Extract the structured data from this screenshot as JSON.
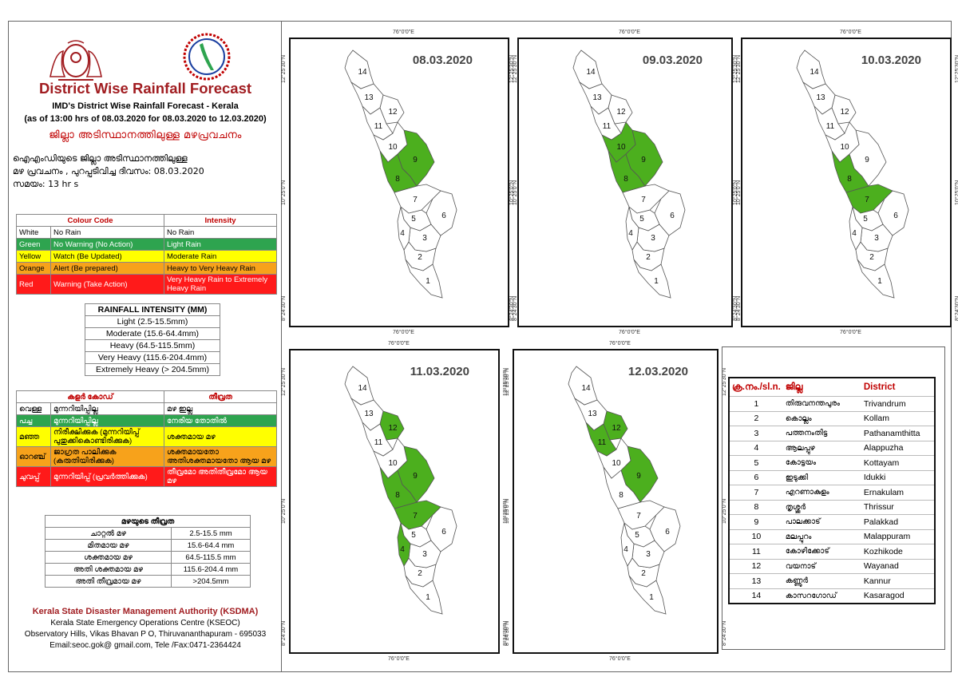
{
  "header": {
    "title": "District Wise Rainfall Forecast",
    "subtitle1": "IMD's District Wise Rainfall Forecast - Kerala",
    "subtitle2": "(as of 13:00 hrs of 08.03.2020  for 08.03.2020  to 12.03.2020)",
    "mal_title": "ജില്ലാ അടിസ്ഥാനത്തിലുള്ള മഴപ്രവചനം",
    "mal_line1": "ഐഎംഡിയുടെ ജില്ലാ    അടിസ്ഥാനത്തിലുള്ള",
    "mal_line2": "മഴ പ്രവചനം , പുറപ്പടിവിച്ച    ദിവസം: 08.03.2020",
    "mal_line3": "സമയം: 13  hr s"
  },
  "colour_table": {
    "headers": [
      "Colour Code",
      "Intensity"
    ],
    "rows": [
      {
        "colour": "White",
        "code": "No Rain",
        "intensity": "No Rain",
        "cls": "c-white"
      },
      {
        "colour": "Green",
        "code": "No Warning (No Action)",
        "intensity": "Light Rain",
        "cls": "c-green"
      },
      {
        "colour": "Yellow",
        "code": "Watch (Be Updated)",
        "intensity": "Moderate Rain",
        "cls": "c-yellow"
      },
      {
        "colour": "Orange",
        "code": "Alert (Be prepared)",
        "intensity": "Heavy to Very Heavy Rain",
        "cls": "c-orange"
      },
      {
        "colour": "Red",
        "code": "Warning (Take Action)",
        "intensity": "Very Heavy Rain to Extremely Heavy Rain",
        "cls": "c-red"
      }
    ]
  },
  "rainfall_intensity": {
    "header": "RAINFALL INTENSITY (MM)",
    "rows": [
      "Light (2.5-15.5mm)",
      "Moderate (15.6-64.4mm)",
      "Heavy (64.5-115.5mm)",
      "Very Heavy (115.6-204.4mm)",
      "Extremely Heavy (> 204.5mm)"
    ]
  },
  "mal_colour_table": {
    "headers": [
      "കളർ കോഡ്",
      "തീവ്രത"
    ],
    "rows": [
      {
        "colour": "വെള്ള",
        "code": "മുന്നറിയിപ്പില്ല",
        "intensity": "മഴ ഇല്ല",
        "cls": "c-white"
      },
      {
        "colour": "പച്ച",
        "code": "മുന്നറിയിപ്പില്ല",
        "intensity": "നേരിയ തോതിൽ",
        "cls": "c-green"
      },
      {
        "colour": "മഞ്ഞ",
        "code": "നിരീക്ഷിക്കുക (മുന്നറിയിപ്പ് പുതുക്കികൊണ്ടിരിക്കുക)",
        "intensity": "ശക്തമായ മഴ",
        "cls": "c-yellow"
      },
      {
        "colour": "ഓറഞ്ച്",
        "code": "ജാഗ്രത പാലിക്കുക (കരുതിയിരിക്കുക)",
        "intensity": "ശക്തമായതോ അതിശക്തമായതോ ആയ മഴ",
        "cls": "c-orange"
      },
      {
        "colour": "ചുവപ്പ്",
        "code": "മുന്നറിയിപ്പ് (പ്രവർത്തിക്കുക)",
        "intensity": "തീവ്രമോ അതിതീവ്രമോ ആയ മഴ",
        "cls": "c-red"
      }
    ]
  },
  "mal_intensity": {
    "header": "മഴയുടെ തീവ്രത",
    "rows": [
      {
        "label": "ചാറ്റൽ മഴ",
        "value": "2.5-15.5 mm"
      },
      {
        "label": "മിതമായ മഴ",
        "value": "15.6-64.4 mm"
      },
      {
        "label": "ശക്തമായ മഴ",
        "value": "64.5-115.5 mm"
      },
      {
        "label": "അതി ശക്തമായ മഴ",
        "value": "115.6-204.4 mm"
      },
      {
        "label": "അതി തീവ്രമായ മഴ",
        "value": ">204.5mm"
      }
    ]
  },
  "footer": {
    "org": "Kerala State Disaster Management Authority (KSDMA)",
    "line1": "Kerala State Emergency Operations Centre (KSEOC)",
    "line2": "Observatory Hills, Vikas Bhavan P O, Thiruvananthapuram - 695033",
    "line3": "Email:seoc.gok@ gmail.com, Tele /Fax:0471-2364424"
  },
  "colors": {
    "green": "#4caf1e",
    "white": "#ffffff",
    "border": "#555555"
  },
  "coords": {
    "lon": "76°0'0\"E",
    "lat_top": "12°25'30\"N",
    "lat_mid": "10°25'0\"N",
    "lat_bot": "8°24'30\"N"
  },
  "maps": [
    {
      "date": "08.03.2020",
      "green": [
        8,
        9
      ]
    },
    {
      "date": "09.03.2020",
      "green": [
        8,
        9,
        10
      ]
    },
    {
      "date": "10.03.2020",
      "green": [
        7,
        8
      ]
    },
    {
      "date": "11.03.2020",
      "green": [
        4,
        7,
        8,
        9,
        12
      ]
    },
    {
      "date": "12.03.2020",
      "green": [
        9,
        11,
        12
      ]
    }
  ],
  "district_table": {
    "headers": [
      "ക്ര.നം./sl.n.",
      "ജില്ല",
      "District"
    ],
    "rows": [
      {
        "n": "1",
        "mal": "തിരുവനന്തപുരം",
        "en": "Trivandrum"
      },
      {
        "n": "2",
        "mal": "കൊല്ലം",
        "en": "Kollam"
      },
      {
        "n": "3",
        "mal": "പത്തനംതിട്ട",
        "en": "Pathanamthitta"
      },
      {
        "n": "4",
        "mal": "ആലപ്പുഴ",
        "en": "Alappuzha"
      },
      {
        "n": "5",
        "mal": "കോട്ടയം",
        "en": "Kottayam"
      },
      {
        "n": "6",
        "mal": "ഇടുക്കി",
        "en": "Idukki"
      },
      {
        "n": "7",
        "mal": "എറണാകുളം",
        "en": "Ernakulam"
      },
      {
        "n": "8",
        "mal": "തൃശ്ശൂർ",
        "en": "Thrissur"
      },
      {
        "n": "9",
        "mal": "പാലക്കാട്",
        "en": "Palakkad"
      },
      {
        "n": "10",
        "mal": "മലപ്പുറം",
        "en": "Malappuram"
      },
      {
        "n": "11",
        "mal": "കോഴിക്കോട്",
        "en": "Kozhikode"
      },
      {
        "n": "12",
        "mal": "വയനാട്",
        "en": "Wayanad"
      },
      {
        "n": "13",
        "mal": "കണ്ണൂർ",
        "en": "Kannur"
      },
      {
        "n": "14",
        "mal": "കാസറഗോഡ്",
        "en": "Kasaragod"
      }
    ]
  }
}
